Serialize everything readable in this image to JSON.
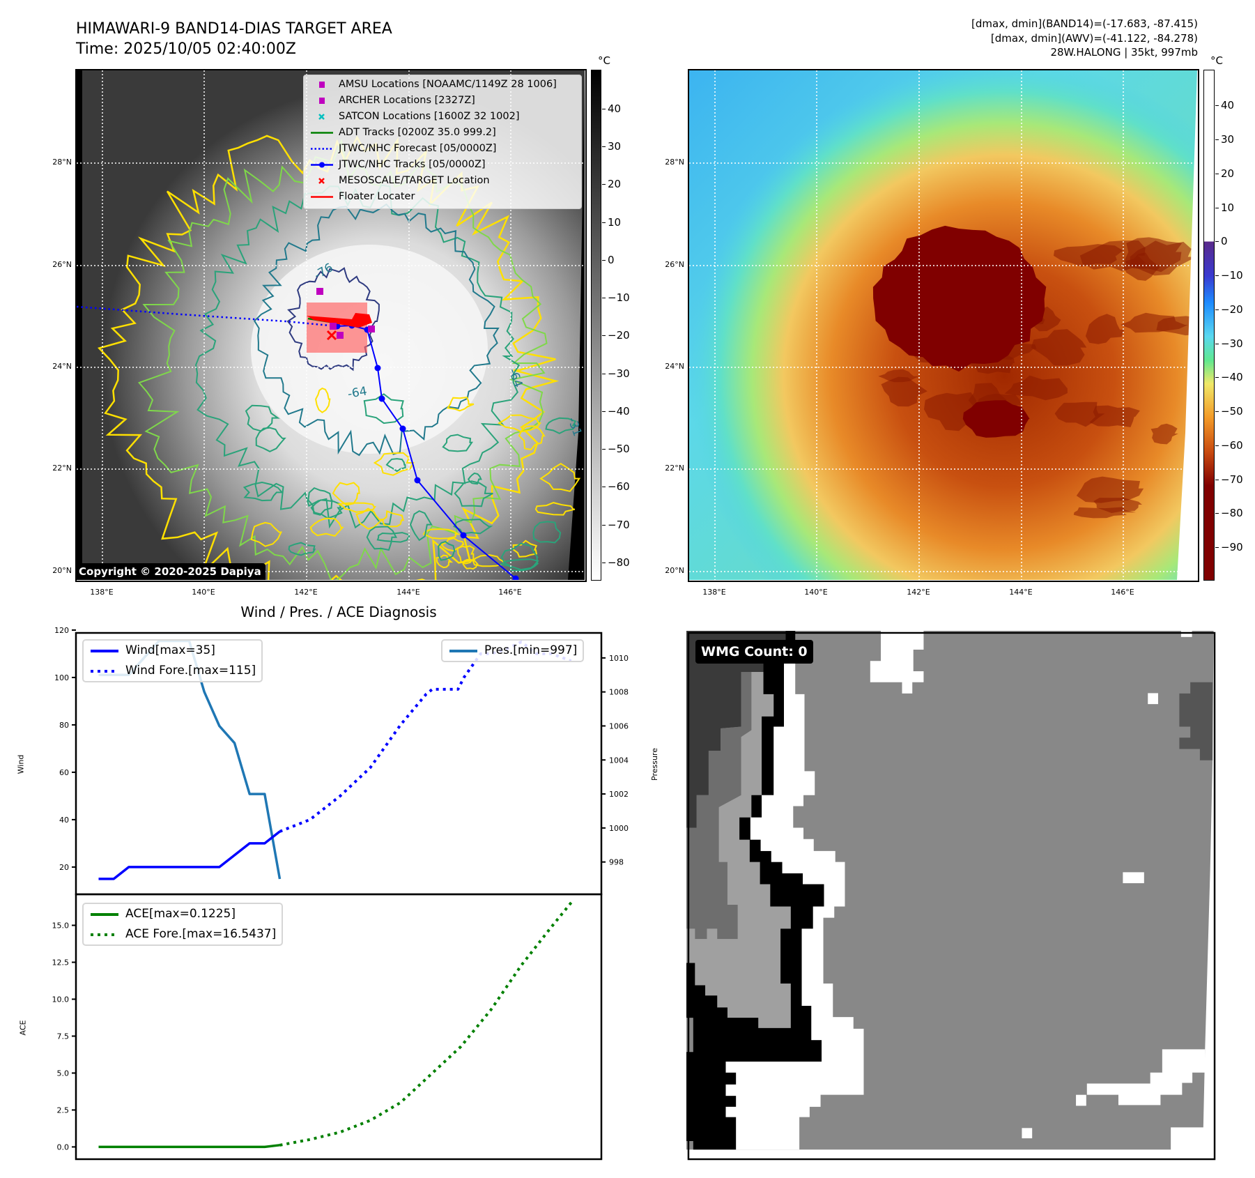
{
  "header": {
    "title_line1": "HIMAWARI-9 BAND14-DIAS TARGET AREA",
    "title_line2": "Time: 2025/10/05 02:40:00Z",
    "info_line1": "[dmax, dmin](BAND14)=(-17.683, -87.415)",
    "info_line2": "[dmax, dmin](AWV)=(-41.122, -84.278)",
    "info_line3": "28W.HALONG | 35kt, 997mb"
  },
  "map_axes": {
    "lat_labels": [
      "28°N",
      "26°N",
      "24°N",
      "22°N",
      "20°N"
    ],
    "lon_labels": [
      "138°E",
      "140°E",
      "142°E",
      "144°E",
      "146°E"
    ]
  },
  "ir_map": {
    "copyright": "Copyright © 2020-2025 Dapiya",
    "contour_labels": [
      "-76",
      "-64",
      "-64",
      "-31"
    ],
    "legend": [
      {
        "label": "AMSU Locations [NOAAMC/1149Z 28 1006]",
        "marker": "square",
        "color": "#bf00bf"
      },
      {
        "label": "ARCHER Locations [2327Z]",
        "marker": "square",
        "color": "#bf00bf"
      },
      {
        "label": "SATCON Locations [1600Z 32 1002]",
        "marker": "x",
        "color": "#00bfbf"
      },
      {
        "label": "ADT Tracks [0200Z 35.0 999.2]",
        "marker": "line",
        "color": "#008000"
      },
      {
        "label": "JTWC/NHC Forecast [05/0000Z]",
        "marker": "dotted",
        "color": "#0000ff"
      },
      {
        "label": "JTWC/NHC Tracks [05/0000Z]",
        "marker": "line-dot",
        "color": "#0000ff"
      },
      {
        "label": "MESOSCALE/TARGET Location",
        "marker": "x",
        "color": "#ff0000"
      },
      {
        "label": "Floater Locater",
        "marker": "line",
        "color": "#ff0000"
      }
    ],
    "colorbar": {
      "unit": "°C",
      "range": [
        -84.8,
        50.3
      ],
      "ticks": [
        40,
        30,
        20,
        10,
        0,
        -10,
        -20,
        -30,
        -40,
        -50,
        -60,
        -70,
        -80
      ]
    }
  },
  "awv_map": {
    "colorbar": {
      "unit": "°C",
      "range": [
        -99.8,
        50.5
      ],
      "ticks": [
        40,
        30,
        20,
        10,
        0,
        -10,
        -20,
        -30,
        -40,
        -50,
        -60,
        -70,
        -80,
        -90
      ]
    }
  },
  "wmg": {
    "label": "WMG Count: 0"
  },
  "chart_data": [
    {
      "type": "line",
      "title": "Wind / Pres. / ACE Diagnosis",
      "xlabel": "",
      "ylabel": "Wind",
      "ylabel_right": "Pressure",
      "xlim": [
        -1.5,
        33.3
      ],
      "ylim": [
        8.5,
        118.8
      ],
      "ylim_right": [
        996.1,
        1011.47
      ],
      "yticks": [
        20,
        40,
        60,
        80,
        100,
        120
      ],
      "yticks_right": [
        998,
        1000,
        1002,
        1004,
        1006,
        1008,
        1010
      ],
      "series": [
        {
          "name": "Wind[max=35]",
          "style": "solid",
          "color": "#0000ff",
          "axis": "left",
          "x": [
            0,
            1,
            2,
            3,
            4,
            5,
            6,
            7,
            8,
            9,
            10,
            11,
            12
          ],
          "values": [
            15,
            15,
            20,
            20,
            20,
            20,
            20,
            20,
            20,
            25,
            30,
            30,
            35
          ]
        },
        {
          "name": "Wind Fore.[max=115]",
          "style": "dotted",
          "color": "#0000ff",
          "axis": "left",
          "x": [
            12,
            14,
            16,
            18,
            20,
            21.7,
            22.1,
            23.8,
            24.2,
            25.3,
            26,
            27,
            28,
            29,
            30,
            31.3
          ],
          "values": [
            35,
            40,
            50,
            62,
            80,
            93,
            95,
            95,
            100,
            110,
            110,
            112,
            115,
            110,
            110,
            107
          ]
        },
        {
          "name": "Pres.[min=997]",
          "style": "solid",
          "color": "#1f77b4",
          "axis": "right",
          "x": [
            0,
            1,
            2,
            3,
            4,
            5,
            6,
            7,
            8,
            9,
            10,
            11,
            12
          ],
          "values": [
            1009,
            1009,
            1009,
            1010,
            1011,
            1011,
            1011,
            1008,
            1006,
            1005,
            1002,
            1002,
            997
          ]
        }
      ],
      "legend_left": [
        "Wind[max=35]",
        "Wind Fore.[max=115]"
      ],
      "legend_right": [
        "Pres.[min=997]"
      ]
    },
    {
      "type": "line",
      "xlabel": "",
      "ylabel": "ACE",
      "xlim": [
        -1.5,
        33.3
      ],
      "ylim": [
        -0.83,
        17.1
      ],
      "yticks": [
        0.0,
        2.5,
        5.0,
        7.5,
        10.0,
        12.5,
        15.0
      ],
      "ytick_labels": [
        "0.0",
        "2.5",
        "5.0",
        "7.5",
        "10.0",
        "12.5",
        "15.0"
      ],
      "series": [
        {
          "name": "ACE[max=0.1225]",
          "style": "solid",
          "color": "#008000",
          "x": [
            0,
            11,
            12
          ],
          "values": [
            0,
            0,
            0.1225
          ]
        },
        {
          "name": "ACE Fore.[max=16.5437]",
          "style": "dotted",
          "color": "#008000",
          "x": [
            12,
            14,
            16,
            18,
            20,
            22,
            24,
            26,
            28,
            30,
            31.3
          ],
          "values": [
            0.12,
            0.5,
            1.0,
            1.8,
            3.0,
            4.9,
            6.8,
            9.3,
            12.3,
            14.9,
            16.54
          ]
        }
      ]
    }
  ]
}
